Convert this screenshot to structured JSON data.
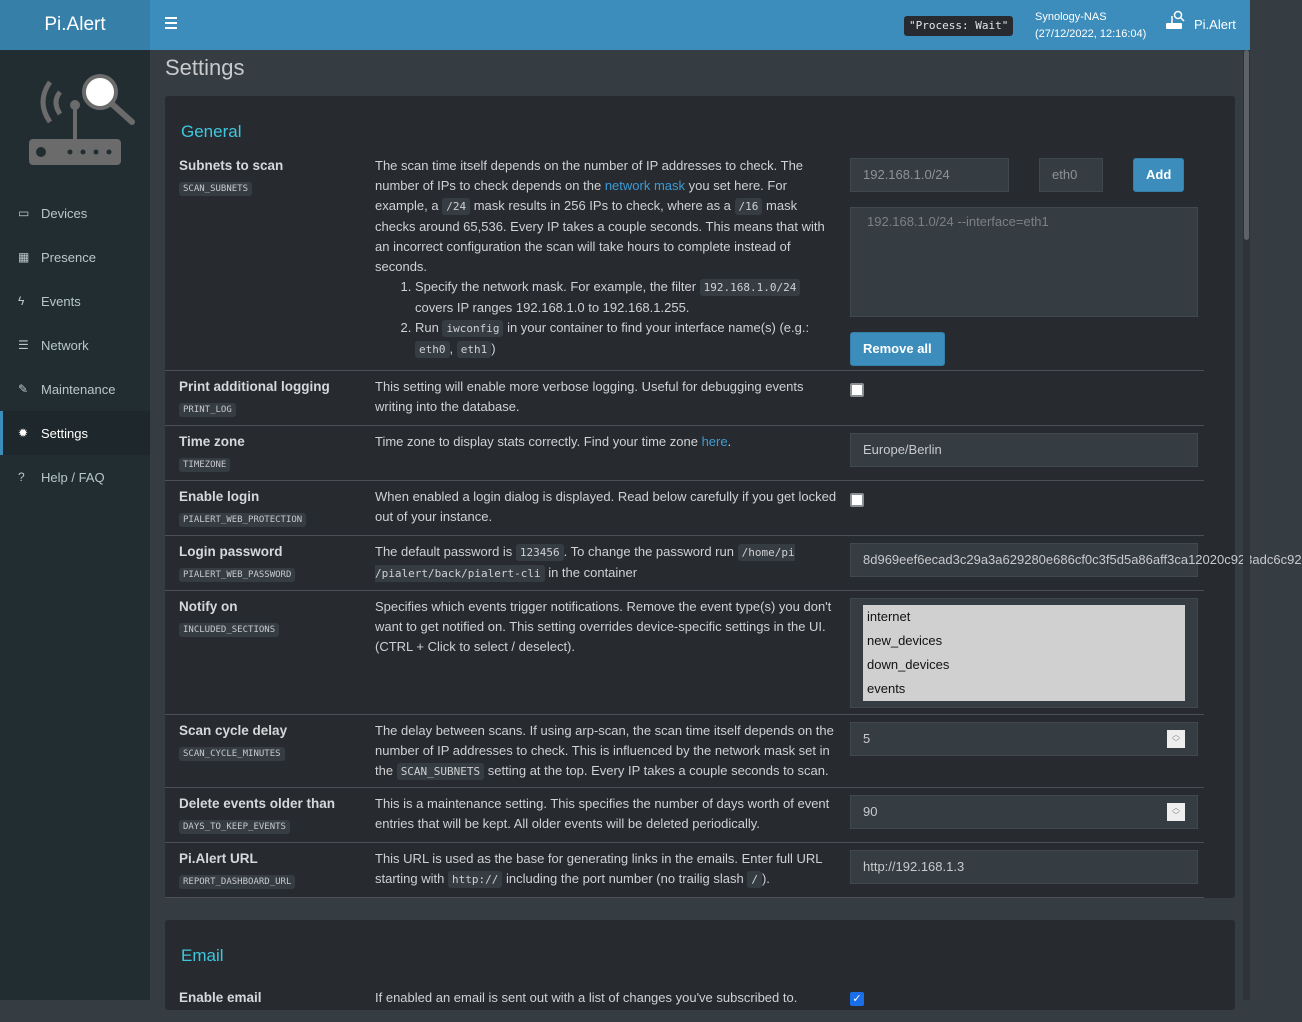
{
  "header": {
    "logo": "Pi.Alert",
    "process": "\"Process: Wait\"",
    "host": "Synology-NAS",
    "datetime": "(27/12/2022, 12:16:04)",
    "user": "Pi.Alert"
  },
  "sidebar": {
    "items": [
      {
        "label": "Devices",
        "icon": "laptop-icon",
        "glyph": "▭"
      },
      {
        "label": "Presence",
        "icon": "calendar-icon",
        "glyph": "▦"
      },
      {
        "label": "Events",
        "icon": "bolt-icon",
        "glyph": "ϟ"
      },
      {
        "label": "Network",
        "icon": "server-icon",
        "glyph": "☰"
      },
      {
        "label": "Maintenance",
        "icon": "wrench-icon",
        "glyph": "✎"
      },
      {
        "label": "Settings",
        "icon": "gear-icon",
        "glyph": "✹",
        "active": true
      },
      {
        "label": "Help / FAQ",
        "icon": "question-icon",
        "glyph": "?"
      }
    ]
  },
  "page": {
    "title": "Settings"
  },
  "general": {
    "title": "General",
    "rows": [
      {
        "label": "Subnets to scan",
        "key": "SCAN_SUBNETS",
        "type": "subnets",
        "desc": [
          [
            {
              "t": "The scan time itself depends on the number of IP addresses to check. The number of IPs to check depends on the "
            },
            {
              "a": "network mask"
            },
            {
              "t": " you set here. For example, a "
            },
            {
              "c": "/24"
            },
            {
              "t": " mask results in 256 IPs to check, where as a "
            },
            {
              "c": "/16"
            },
            {
              "t": " mask checks around 65,536. Every IP takes a couple seconds. This means that with an incorrect configuration the scan will take hours to complete instead of seconds."
            }
          ]
        ],
        "list": [
          [
            {
              "t": "Specify the network mask. For example, the filter "
            },
            {
              "c": "192.168.1.0/24"
            },
            {
              "t": " covers IP ranges 192.168.1.0 to 192.168.1.255."
            }
          ],
          [
            {
              "t": "Run "
            },
            {
              "c": "iwconfig"
            },
            {
              "t": " in your container to find your interface name(s) (e.g.: "
            },
            {
              "c": "eth0"
            },
            {
              "t": ", "
            },
            {
              "c": "eth1"
            },
            {
              "t": ")"
            }
          ]
        ],
        "subnet_placeholder": "192.168.1.0/24",
        "interface_placeholder": "eth0",
        "add_label": "Add",
        "entries": [
          "192.168.1.0/24 --interface=eth1"
        ],
        "remove_label": "Remove all"
      },
      {
        "label": "Print additional logging",
        "key": "PRINT_LOG",
        "type": "checkbox",
        "checked": false,
        "desc": [
          [
            {
              "t": "This setting will enable more verbose logging. Useful for debugging events writing into the database."
            }
          ]
        ]
      },
      {
        "label": "Time zone",
        "key": "TIMEZONE",
        "type": "text",
        "value": "Europe/Berlin",
        "desc": [
          [
            {
              "t": "Time zone to display stats correctly. Find your time zone "
            },
            {
              "a": "here"
            },
            {
              "t": "."
            }
          ]
        ]
      },
      {
        "label": "Enable login",
        "key": "PIALERT_WEB_PROTECTION",
        "type": "checkbox",
        "checked": false,
        "desc": [
          [
            {
              "t": "When enabled a login dialog is displayed. Read below carefully if you get locked out of your instance."
            }
          ]
        ]
      },
      {
        "label": "Login password",
        "key": "PIALERT_WEB_PASSWORD",
        "type": "text",
        "value": "8d969eef6ecad3c29a3a629280e686cf0c3f5d5a86aff3ca12020c923adc6c92",
        "desc": [
          [
            {
              "t": "The default password is "
            },
            {
              "c": "123456"
            },
            {
              "t": ". To change the password run "
            },
            {
              "c": "/home/pi /pialert/back/pialert-cli"
            },
            {
              "t": " in the container"
            }
          ]
        ]
      },
      {
        "label": "Notify on",
        "key": "INCLUDED_SECTIONS",
        "type": "multi",
        "options": [
          "internet",
          "new_devices",
          "down_devices",
          "events"
        ],
        "desc": [
          [
            {
              "t": "Specifies which events trigger notifications. Remove the event type(s) you don't want to get notified on. This setting overrides device-specific settings in the UI. (CTRL + Click to select / deselect)."
            }
          ]
        ]
      },
      {
        "label": "Scan cycle delay",
        "key": "SCAN_CYCLE_MINUTES",
        "type": "number",
        "value": "5",
        "desc": [
          [
            {
              "t": "The delay between scans. If using arp-scan, the scan time itself depends on the number of IP addresses to check. This is influenced by the network mask set in the "
            },
            {
              "c": "SCAN_SUBNETS"
            },
            {
              "t": " setting at the top. Every IP takes a couple seconds to scan."
            }
          ]
        ]
      },
      {
        "label": "Delete events older than",
        "key": "DAYS_TO_KEEP_EVENTS",
        "type": "number",
        "value": "90",
        "desc": [
          [
            {
              "t": "This is a maintenance setting. This specifies the number of days worth of event entries that will be kept. All older events will be deleted periodically."
            }
          ]
        ]
      },
      {
        "label": "Pi.Alert URL",
        "key": "REPORT_DASHBOARD_URL",
        "type": "text",
        "value": "http://192.168.1.3",
        "desc": [
          [
            {
              "t": "This URL is used as the base for generating links in the emails. Enter full URL starting with "
            },
            {
              "c": "http://"
            },
            {
              "t": " including the port number (no trailig slash "
            },
            {
              "c": "/"
            },
            {
              "t": ")."
            }
          ]
        ]
      }
    ]
  },
  "email": {
    "title": "Email",
    "rows": [
      {
        "label": "Enable email",
        "key": "",
        "type": "checkbox",
        "checked": true,
        "desc": [
          [
            {
              "t": "If enabled an email is sent out with a list of changes you've subscribed to."
            }
          ]
        ]
      }
    ]
  }
}
